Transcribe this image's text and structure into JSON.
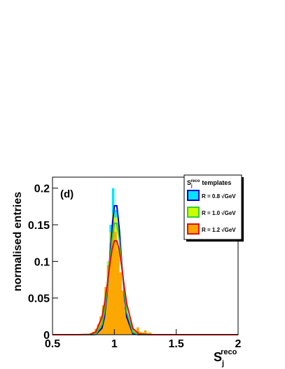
{
  "chart_data": {
    "type": "histogram",
    "annotation": "(d)",
    "ylabel": "normalised entries",
    "xlabel": {
      "base": "S",
      "sub": "j",
      "sup": "reco"
    },
    "legend_title": {
      "base": "S",
      "sub": "j",
      "sup": "reco",
      "text": "templates"
    },
    "legend_position": "upper right",
    "xlim": [
      0.5,
      2.0
    ],
    "ylim": [
      0,
      0.215
    ],
    "xticks": [
      0.5,
      1,
      1.5,
      2
    ],
    "yticks": [
      0,
      0.05,
      0.1,
      0.15,
      0.2
    ],
    "bins": [
      0.8,
      0.82,
      0.84,
      0.86,
      0.88,
      0.9,
      0.92,
      0.94,
      0.96,
      0.98,
      1.0,
      1.02,
      1.04,
      1.06,
      1.08,
      1.1,
      1.12,
      1.14,
      1.16,
      1.18,
      1.2,
      1.22,
      1.24,
      1.26,
      1.28,
      1.3
    ],
    "fit_x": [
      0.5,
      0.7,
      0.8,
      0.85,
      0.9,
      0.92,
      0.94,
      0.96,
      0.98,
      1.0,
      1.02,
      1.04,
      1.06,
      1.08,
      1.1,
      1.15,
      1.2,
      1.3,
      1.5,
      2.0
    ],
    "series": [
      {
        "name": "R = 0.8 √GeV",
        "color": "#00e5ff",
        "line_color": "#0000cc",
        "values": [
          0,
          0.002,
          0.004,
          0.008,
          0.016,
          0.03,
          0.06,
          0.1,
          0.15,
          0.2,
          0.17,
          0.12,
          0.07,
          0.04,
          0.02,
          0.008,
          0.004,
          0.002,
          0,
          0,
          0,
          0,
          0,
          0,
          0
        ],
        "fit": [
          0,
          0,
          0,
          0.0003,
          0.009,
          0.024,
          0.054,
          0.097,
          0.144,
          0.176,
          0.176,
          0.144,
          0.097,
          0.054,
          0.024,
          0.001,
          0,
          0,
          0,
          0
        ]
      },
      {
        "name": "R = 1.0 √GeV",
        "color": "#ccff00",
        "line_color": "#33cc33",
        "values": [
          0,
          0.002,
          0.005,
          0.01,
          0.02,
          0.035,
          0.06,
          0.1,
          0.14,
          0.165,
          0.16,
          0.12,
          0.08,
          0.05,
          0.025,
          0.012,
          0.006,
          0.003,
          0.001,
          0,
          0,
          0,
          0,
          0,
          0
        ],
        "fit": [
          0,
          0,
          0,
          0.0009,
          0.0138,
          0.0307,
          0.0582,
          0.094,
          0.129,
          0.152,
          0.152,
          0.129,
          0.094,
          0.0582,
          0.0307,
          0.0031,
          0.0001,
          0,
          0,
          0
        ]
      },
      {
        "name": "R = 1.2 √GeV",
        "color": "#ffa500",
        "line_color": "#dd1111",
        "values": [
          0.002,
          0.004,
          0.008,
          0.014,
          0.025,
          0.04,
          0.065,
          0.095,
          0.125,
          0.155,
          0.14,
          0.115,
          0.085,
          0.06,
          0.038,
          0.022,
          0.013,
          0.008,
          0.005,
          0.01,
          0.004,
          0.003,
          0.006,
          0.002,
          0.003
        ],
        "fit": [
          0,
          0,
          0.0003,
          0.0037,
          0.0242,
          0.0422,
          0.0658,
          0.0919,
          0.115,
          0.128,
          0.128,
          0.115,
          0.0919,
          0.0658,
          0.0422,
          0.0085,
          0.0009,
          0,
          0,
          0
        ]
      }
    ]
  }
}
